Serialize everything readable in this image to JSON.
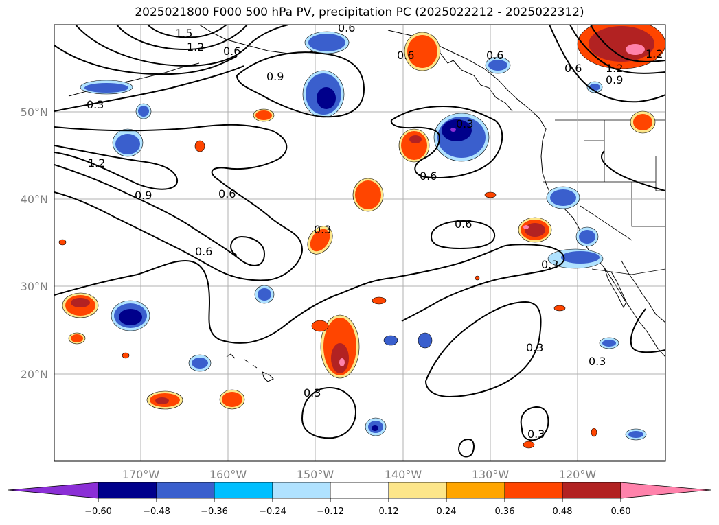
{
  "title": "2025021800 F000 500 hPa PV, precipitation PC (2025022212 - 2025022312)",
  "map": {
    "lon_range": [
      -180,
      -110
    ],
    "lat_range": [
      10,
      60
    ],
    "lon_ticks": [
      {
        "value": -170,
        "label": "170°W"
      },
      {
        "value": -160,
        "label": "160°W"
      },
      {
        "value": -150,
        "label": "150°W"
      },
      {
        "value": -140,
        "label": "140°W"
      },
      {
        "value": -130,
        "label": "130°W"
      },
      {
        "value": -120,
        "label": "120°W"
      }
    ],
    "lat_ticks": [
      {
        "value": 20,
        "label": "20°N"
      },
      {
        "value": 30,
        "label": "30°N"
      },
      {
        "value": 40,
        "label": "40°N"
      },
      {
        "value": 50,
        "label": "50°N"
      }
    ],
    "grid": true,
    "pv_contour_labels": [
      "1.5",
      "1.2",
      "0.6",
      "0.9",
      "0.3",
      "1.2",
      "0.9",
      "0.6",
      "0.6",
      "0.3",
      "0.6",
      "0.6",
      "0.6",
      "0.3",
      "0.6",
      "0.3",
      "0.3",
      "0.3",
      "0.3",
      "0.3",
      "0.6",
      "1.2",
      "0.9",
      "0.6",
      "1.2"
    ]
  },
  "colorbar": {
    "ticks": [
      "−0.60",
      "−0.48",
      "−0.36",
      "−0.24",
      "−0.12",
      "0.12",
      "0.24",
      "0.36",
      "0.48",
      "0.60"
    ],
    "colors": [
      "#8b2fd6",
      "#00008b",
      "#3a5fcd",
      "#00bfff",
      "#b0e2ff",
      "#ffffff",
      "#fde68a",
      "#ffa500",
      "#ff4500",
      "#b22222",
      "#ff82ab"
    ],
    "extend": "both"
  }
}
